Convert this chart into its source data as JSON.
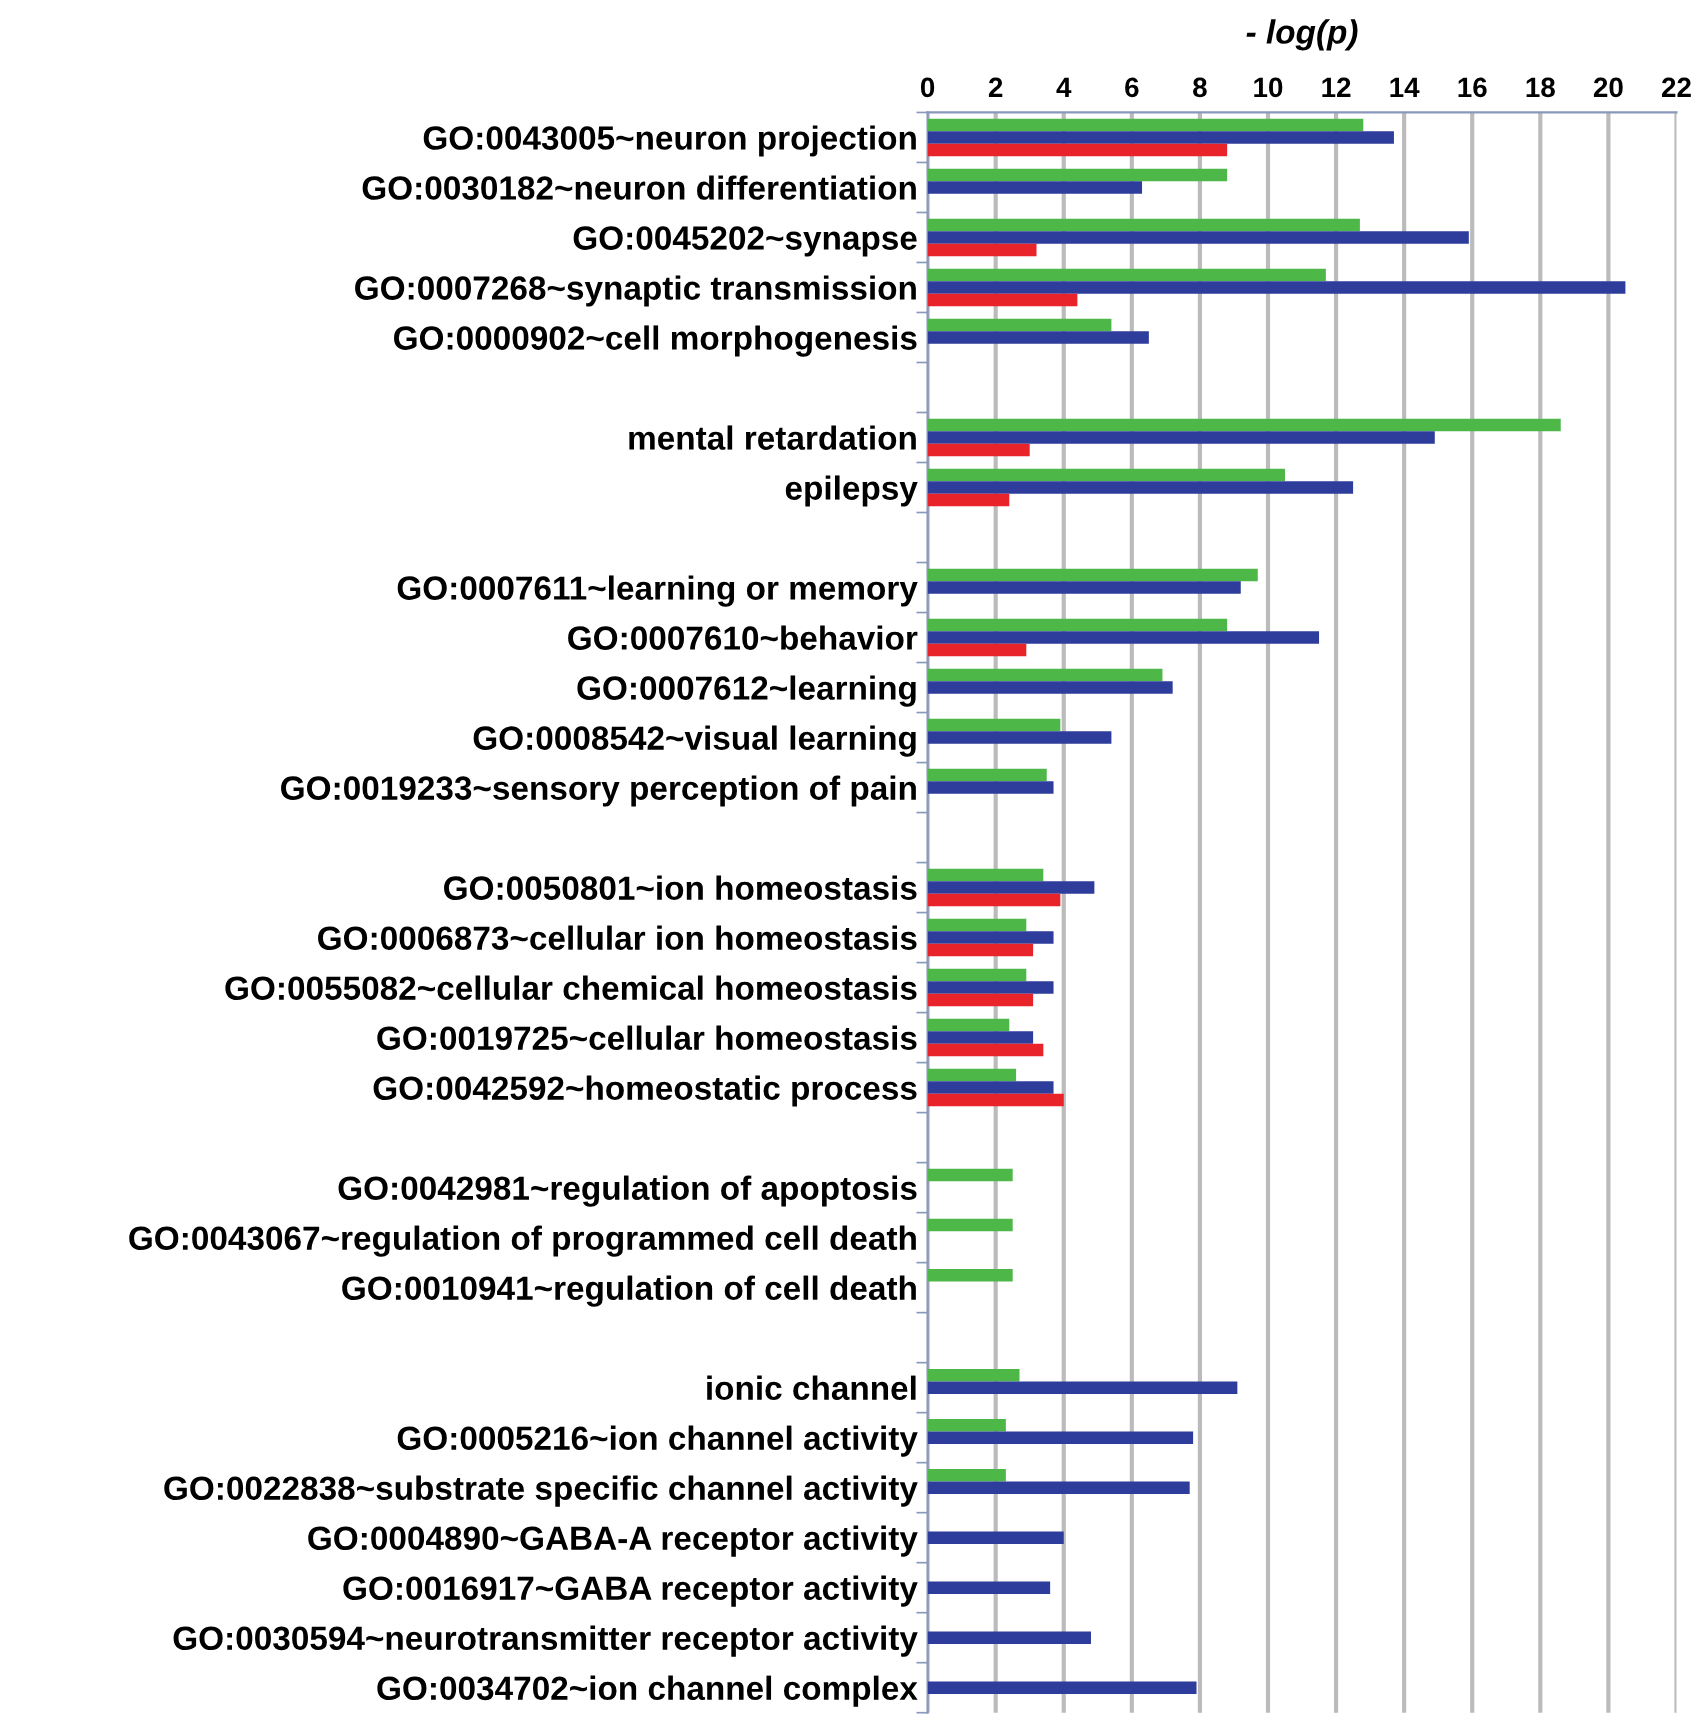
{
  "chart_data": {
    "type": "bar",
    "orientation": "horizontal",
    "xlabel": "- log(p)",
    "categories": [
      "GO:0043005~neuron projection",
      "GO:0030182~neuron differentiation",
      "GO:0045202~synapse",
      "GO:0007268~synaptic transmission",
      "GO:0000902~cell morphogenesis",
      null,
      "mental retardation",
      "epilepsy",
      null,
      "GO:0007611~learning or memory",
      "GO:0007610~behavior",
      "GO:0007612~learning",
      "GO:0008542~visual learning",
      "GO:0019233~sensory perception of pain",
      null,
      "GO:0050801~ion homeostasis",
      "GO:0006873~cellular ion homeostasis",
      "GO:0055082~cellular chemical homeostasis",
      "GO:0019725~cellular homeostasis",
      "GO:0042592~homeostatic process",
      null,
      "GO:0042981~regulation of apoptosis",
      "GO:0043067~regulation of programmed cell death",
      "GO:0010941~regulation of cell death",
      null,
      "ionic channel",
      "GO:0005216~ion channel activity",
      "GO:0022838~substrate specific channel activity",
      "GO:0004890~GABA-A receptor activity",
      "GO:0016917~GABA receptor activity",
      "GO:0030594~neurotransmitter receptor activity",
      "GO:0034702~ion channel complex"
    ],
    "series": [
      {
        "color": "#4db848",
        "values": [
          12.8,
          8.8,
          12.7,
          11.7,
          5.4,
          null,
          18.6,
          10.5,
          null,
          9.7,
          8.8,
          6.9,
          3.9,
          3.5,
          null,
          3.4,
          2.9,
          2.9,
          2.4,
          2.6,
          null,
          2.5,
          2.5,
          2.5,
          null,
          2.7,
          2.3,
          2.3,
          null,
          null,
          null,
          null
        ]
      },
      {
        "color": "#2e3d9c",
        "values": [
          13.7,
          6.3,
          15.9,
          20.5,
          6.5,
          null,
          14.9,
          12.5,
          null,
          9.2,
          11.5,
          7.2,
          5.4,
          3.7,
          null,
          4.9,
          3.7,
          3.7,
          3.1,
          3.7,
          null,
          null,
          null,
          null,
          null,
          9.1,
          7.8,
          7.7,
          4.0,
          3.6,
          4.8,
          7.9
        ]
      },
      {
        "color": "#e8232a",
        "values": [
          8.8,
          null,
          3.2,
          4.4,
          null,
          null,
          3.0,
          2.4,
          null,
          null,
          2.9,
          null,
          null,
          null,
          null,
          3.9,
          3.1,
          3.1,
          3.4,
          4.0,
          null,
          null,
          null,
          null,
          null,
          null,
          null,
          null,
          null,
          null,
          null,
          null
        ]
      }
    ],
    "xlim": [
      0,
      22
    ],
    "xticks": [
      0,
      2,
      4,
      6,
      8,
      10,
      12,
      14,
      16,
      18,
      20,
      22
    ],
    "grid": "x",
    "legend": false
  }
}
